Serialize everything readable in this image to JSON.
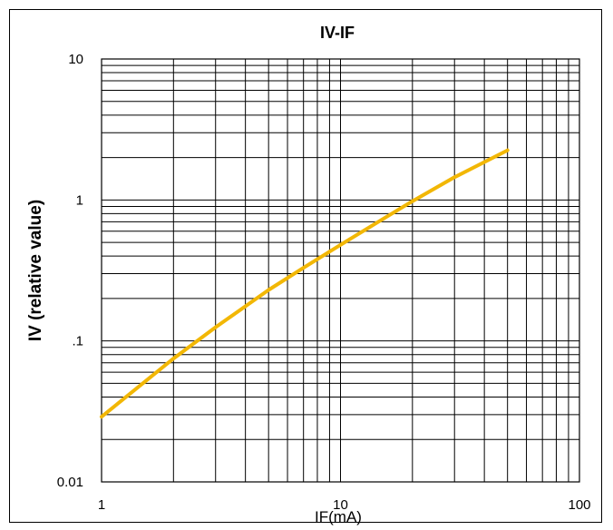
{
  "chart_data": {
    "type": "line",
    "title": "IV-IF",
    "xlabel": "IF(mA)",
    "ylabel": "IV (relative value)",
    "x_scale": "log",
    "y_scale": "log",
    "xlim": [
      1,
      100
    ],
    "ylim": [
      0.01,
      10
    ],
    "grid": true,
    "x_tick_labels": [
      "1",
      "10",
      "100"
    ],
    "y_tick_labels": [
      "0.01",
      ".1",
      "1",
      "10"
    ],
    "series": [
      {
        "color": "#f2b705",
        "x": [
          1,
          2,
          3,
          5,
          7,
          10,
          15,
          20,
          30,
          50
        ],
        "y": [
          0.029,
          0.075,
          0.125,
          0.23,
          0.33,
          0.48,
          0.73,
          0.98,
          1.45,
          2.25
        ]
      }
    ]
  }
}
